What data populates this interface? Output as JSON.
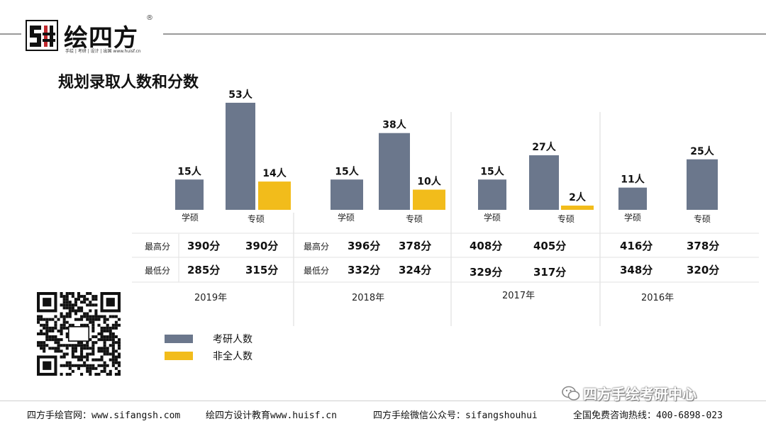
{
  "brand": {
    "name": "绘四方",
    "registered": "®",
    "tagline": "手绘 | 考研 | 设计 | 出国 www.huisf.cn"
  },
  "page_title": "规划录取人数和分数",
  "colors": {
    "kaoyan": "#6b778c",
    "feiquan": "#f2bc1b"
  },
  "chart_data": {
    "type": "bar",
    "groups": [
      {
        "year": "2019年",
        "bars": [
          {
            "category": "学硕",
            "series": "考研人数",
            "value": 15,
            "label": "15人"
          },
          {
            "category": "专硕",
            "series": "考研人数",
            "value": 53,
            "label": "53人"
          },
          {
            "category": "专硕",
            "series": "非全人数",
            "value": 14,
            "label": "14人"
          }
        ]
      },
      {
        "year": "2018年",
        "bars": [
          {
            "category": "学硕",
            "series": "考研人数",
            "value": 15,
            "label": "15人"
          },
          {
            "category": "专硕",
            "series": "考研人数",
            "value": 38,
            "label": "38人"
          },
          {
            "category": "专硕",
            "series": "非全人数",
            "value": 10,
            "label": "10人"
          }
        ]
      },
      {
        "year": "2017年",
        "bars": [
          {
            "category": "学硕",
            "series": "考研人数",
            "value": 15,
            "label": "15人"
          },
          {
            "category": "专硕",
            "series": "考研人数",
            "value": 27,
            "label": "27人"
          },
          {
            "category": "专硕",
            "series": "非全人数",
            "value": 2,
            "label": "2人"
          }
        ]
      },
      {
        "year": "2016年",
        "bars": [
          {
            "category": "学硕",
            "series": "考研人数",
            "value": 11,
            "label": "11人"
          },
          {
            "category": "专硕",
            "series": "考研人数",
            "value": 25,
            "label": "25人"
          }
        ]
      }
    ],
    "legend": [
      {
        "name": "考研人数",
        "color": "#6b778c"
      },
      {
        "name": "非全人数",
        "color": "#f2bc1b"
      }
    ]
  },
  "table": {
    "row_headers": [
      "最高分",
      "最低分"
    ],
    "years": [
      {
        "year": "2019年",
        "max": [
          "390分",
          "390分"
        ],
        "min": [
          "285分",
          "315分"
        ]
      },
      {
        "year": "2018年",
        "max": [
          "396分",
          "378分"
        ],
        "min": [
          "332分",
          "324分"
        ]
      },
      {
        "year": "2017年",
        "max": [
          "408分",
          "405分"
        ],
        "min": [
          "329分",
          "317分"
        ]
      },
      {
        "year": "2016年",
        "max": [
          "416分",
          "378分"
        ],
        "min": [
          "348分",
          "320分"
        ]
      }
    ]
  },
  "footer": {
    "site": "四方手绘官网：www.sifangsh.com",
    "edu": "绘四方设计教育www.huisf.cn",
    "wechat": "四方手绘微信公众号：sifangshouhui",
    "hotline": "全国免费咨询热线：400-6898-023"
  },
  "watermark": "四方手绘考研中心"
}
